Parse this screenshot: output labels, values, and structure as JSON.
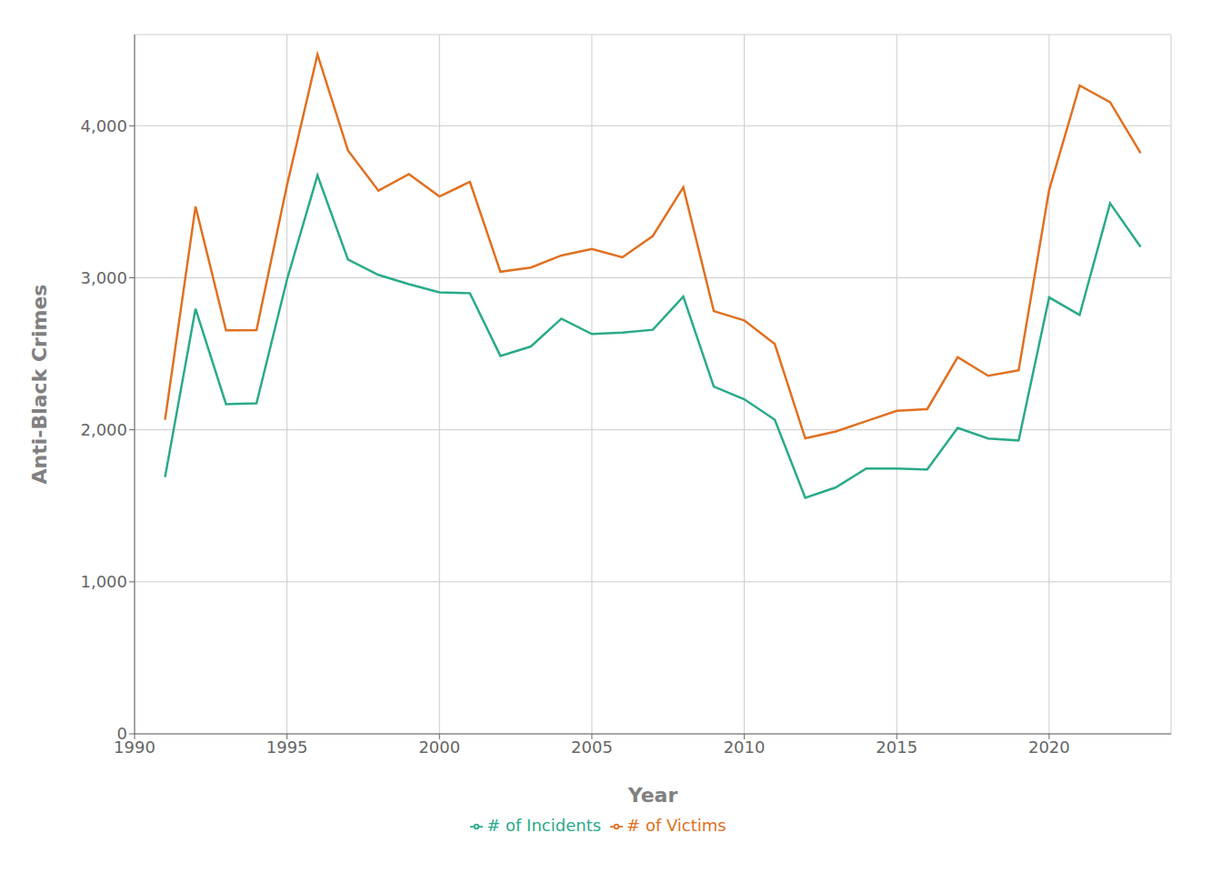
{
  "chart_data": {
    "type": "line",
    "xlabel": "Year",
    "ylabel": "Anti-Black Crimes",
    "x": [
      1991,
      1992,
      1993,
      1994,
      1995,
      1996,
      1997,
      1998,
      1999,
      2000,
      2001,
      2002,
      2003,
      2004,
      2005,
      2006,
      2007,
      2008,
      2009,
      2010,
      2011,
      2012,
      2013,
      2014,
      2015,
      2016,
      2017,
      2018,
      2019,
      2020,
      2021,
      2022,
      2023
    ],
    "series": [
      {
        "name": "# of Incidents",
        "color": "#2aaa8a",
        "values": [
          1689,
          2796,
          2169,
          2174,
          2988,
          3674,
          3120,
          3019,
          2958,
          2904,
          2899,
          2486,
          2548,
          2731,
          2630,
          2640,
          2658,
          2876,
          2284,
          2201,
          2067,
          1552,
          1621,
          1745,
          1745,
          1739,
          2013,
          1943,
          1930,
          2871,
          2755,
          3490,
          3203
        ]
      },
      {
        "name": "# of Victims",
        "color": "#e07020",
        "values": [
          2066,
          3469,
          2654,
          2656,
          3609,
          4469,
          3838,
          3573,
          3682,
          3535,
          3631,
          3040,
          3067,
          3147,
          3190,
          3135,
          3275,
          3596,
          2781,
          2720,
          2564,
          1944,
          1989,
          2057,
          2125,
          2136,
          2478,
          2355,
          2391,
          3578,
          4265,
          4155,
          3820
        ]
      }
    ],
    "xlim": [
      1990,
      2024
    ],
    "xticks": [
      1990,
      1995,
      2000,
      2005,
      2010,
      2015,
      2020
    ],
    "ylim": [
      0,
      4600
    ],
    "yticks": [
      0,
      {
        "value": 1000,
        "label": "1,000"
      },
      {
        "value": 2000,
        "label": "2,000"
      },
      {
        "value": 3000,
        "label": "3,000"
      },
      {
        "value": 4000,
        "label": "4,000"
      }
    ],
    "grid": true,
    "legend": "bottom"
  }
}
